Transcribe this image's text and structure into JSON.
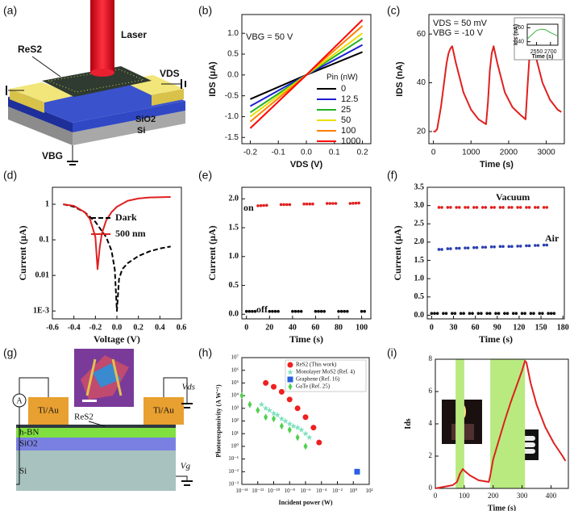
{
  "panel_labels": [
    "(a)",
    "(b)",
    "(c)",
    "(d)",
    "(e)",
    "(f)",
    "(g)",
    "(h)",
    "(i)"
  ],
  "diagram_a": {
    "laser": "Laser",
    "material": "ReS2",
    "drain": "VDS",
    "oxide": "SiO2",
    "substrate": "Si",
    "gate": "VBG"
  },
  "diagram_g": {
    "meter": "A",
    "pad_left": "Ti/Au",
    "pad_right": "Ti/Au",
    "material": "ReS2",
    "hbn": "h-BN",
    "oxide": "SiO2",
    "substrate": "Si",
    "drain": "Vds",
    "gate": "Vg"
  },
  "chart_data": [
    {
      "type": "line",
      "xlabel": "VDS (V)",
      "ylabel": "IDS (μA)",
      "annotations": [
        "VBG = 50 V"
      ],
      "legend_title": "Pin (nW)",
      "xlim": [
        -0.23,
        0.23
      ],
      "ylim": [
        -1.65,
        1.45
      ],
      "xticks": [
        -0.2,
        -0.1,
        {
          "value": 0,
          "label": "0.0"
        },
        0.1,
        0.2
      ],
      "yticks": [
        -1.5,
        {
          "value": -1,
          "label": "-1.0"
        },
        -0.5,
        {
          "value": 0,
          "label": "0.0"
        },
        0.5,
        {
          "value": 1,
          "label": "1.0"
        }
      ],
      "series": [
        {
          "name": "0",
          "color": "#000000",
          "x": [
            -0.2,
            0,
            0.2
          ],
          "values": [
            -0.58,
            0,
            0.55
          ]
        },
        {
          "name": "12.5",
          "color": "#1f1fd0",
          "x": [
            -0.2,
            0,
            0.2
          ],
          "values": [
            -0.75,
            0,
            0.72
          ]
        },
        {
          "name": "25",
          "color": "#22b022",
          "x": [
            -0.2,
            0,
            0.2
          ],
          "values": [
            -0.9,
            0,
            0.88
          ]
        },
        {
          "name": "50",
          "color": "#e8e000",
          "x": [
            -0.2,
            0,
            0.2
          ],
          "values": [
            -1.0,
            0,
            1.0
          ]
        },
        {
          "name": "100",
          "color": "#ff8000",
          "x": [
            -0.2,
            0,
            0.2
          ],
          "values": [
            -1.12,
            0,
            1.18
          ]
        },
        {
          "name": "1000",
          "color": "#ff0000",
          "x": [
            -0.2,
            0,
            0.2
          ],
          "values": [
            -1.28,
            0,
            1.32
          ]
        }
      ]
    },
    {
      "type": "line",
      "xlabel": "Time (s)",
      "ylabel": "IDS (nA)",
      "annotations": [
        "VDS = 50 mV",
        "VBG = -10 V"
      ],
      "xlim": [
        -120,
        3480
      ],
      "ylim": [
        15,
        68
      ],
      "xticks": [
        0,
        1000,
        2000,
        3000
      ],
      "yticks": [
        20,
        40,
        60
      ],
      "series": [
        {
          "color": "#e02020",
          "x": [
            0,
            50,
            100,
            200,
            300,
            350,
            400,
            450,
            500,
            600,
            800,
            1000,
            1200,
            1400,
            1450,
            1500,
            1550,
            1600,
            1700,
            1900,
            2100,
            2300,
            2450,
            2500,
            2550,
            2600,
            2650,
            2700,
            2900,
            3100,
            3300,
            3400
          ],
          "values": [
            20,
            20,
            21,
            30,
            42,
            48,
            52,
            54,
            55,
            48,
            36,
            29,
            25,
            23,
            32,
            45,
            52,
            55,
            48,
            36,
            30,
            27,
            25,
            38,
            50,
            57,
            58,
            52,
            40,
            33,
            29,
            28
          ]
        }
      ]
    },
    {
      "type": "line",
      "xlabel": "Time (s)",
      "ylabel": "Ids (nA)",
      "xlim": [
        2450,
        2780
      ],
      "ylim": [
        35,
        65
      ],
      "xticks": [
        2550,
        2700
      ],
      "yticks": [
        40,
        60
      ],
      "series": [
        {
          "color": "#3cb043",
          "x": [
            2450,
            2500,
            2550,
            2600,
            2650,
            2700,
            2780
          ],
          "values": [
            44,
            50,
            56,
            58,
            57,
            53,
            48
          ]
        }
      ]
    },
    {
      "type": "line",
      "xlabel": "Voltage (V)",
      "ylabel": "Current (μA)",
      "yscale": "log",
      "xlim": [
        -0.6,
        0.6
      ],
      "ylim": [
        0.0006,
        3
      ],
      "xticks": [
        -0.6,
        -0.4,
        -0.2,
        {
          "value": 0,
          "label": "0.0"
        },
        0.2,
        0.4,
        0.6
      ],
      "yticks": [
        {
          "value": 0.001,
          "label": "1E-3"
        },
        0.01,
        0.1,
        1
      ],
      "series": [
        {
          "name": "Dark",
          "color": "#000000",
          "style": "dashed",
          "x": [
            -0.5,
            -0.4,
            -0.3,
            -0.2,
            -0.1,
            -0.05,
            -0.02,
            0,
            0.02,
            0.05,
            0.1,
            0.2,
            0.3,
            0.4,
            0.5
          ],
          "values": [
            1.0,
            0.85,
            0.6,
            0.32,
            0.12,
            0.05,
            0.015,
            0.001,
            0.008,
            0.015,
            0.022,
            0.035,
            0.047,
            0.057,
            0.065
          ]
        },
        {
          "name": "500 nm",
          "color": "#e02020",
          "x": [
            -0.5,
            -0.4,
            -0.3,
            -0.25,
            -0.2,
            -0.18,
            -0.16,
            -0.14,
            -0.1,
            -0.05,
            0,
            0.1,
            0.2,
            0.3,
            0.5
          ],
          "values": [
            1.0,
            0.9,
            0.6,
            0.38,
            0.12,
            0.015,
            0.06,
            0.15,
            0.35,
            0.6,
            0.85,
            1.25,
            1.45,
            1.55,
            1.6
          ]
        }
      ]
    },
    {
      "type": "line",
      "xlabel": "Time (s)",
      "ylabel": "Current (μA)",
      "annotations": [
        "on",
        "off"
      ],
      "xlim": [
        -4,
        108
      ],
      "ylim": [
        -0.08,
        2.2
      ],
      "xticks": [
        0,
        20,
        40,
        60,
        80,
        100
      ],
      "yticks": [
        {
          "value": 0,
          "label": "0.0"
        },
        0.5,
        {
          "value": 1,
          "label": "1.0"
        },
        1.5,
        {
          "value": 2,
          "label": "2.0"
        }
      ],
      "series": [
        {
          "color": "#e02020",
          "style": "dots",
          "x": [
            10,
            20,
            null,
            30,
            40,
            null,
            50,
            60,
            null,
            70,
            80,
            null,
            90,
            100
          ],
          "values": [
            1.88,
            1.89,
            null,
            1.9,
            1.9,
            null,
            1.91,
            1.91,
            null,
            1.92,
            1.92,
            null,
            1.92,
            1.93
          ]
        },
        {
          "color": "#111111",
          "style": "dots",
          "x": [
            0,
            10,
            null,
            20,
            30,
            null,
            40,
            50,
            null,
            60,
            70,
            null,
            80,
            90,
            null,
            100,
            105
          ],
          "values": [
            0.05,
            0.05,
            null,
            0.05,
            0.05,
            null,
            0.05,
            0.05,
            null,
            0.05,
            0.05,
            null,
            0.05,
            0.05,
            null,
            0.05,
            0.05
          ]
        }
      ]
    },
    {
      "type": "line",
      "xlabel": "Time (s)",
      "ylabel": "Current (μA)",
      "xlim": [
        -6,
        182
      ],
      "ylim": [
        -0.1,
        3.5
      ],
      "xticks": [
        0,
        30,
        60,
        90,
        120,
        150,
        180
      ],
      "yticks": [
        {
          "value": 0,
          "label": "0.0"
        },
        0.5,
        {
          "value": 1,
          "label": "1.0"
        },
        1.5,
        {
          "value": 2,
          "label": "2.0"
        },
        2.5,
        {
          "value": 3,
          "label": "3.0"
        },
        3.5
      ],
      "series": [
        {
          "name": "Vacuum",
          "color": "#e02020",
          "style": "dots",
          "x": [
            10,
            16,
            null,
            22,
            28,
            null,
            34,
            40,
            null,
            46,
            52,
            null,
            58,
            64,
            null,
            70,
            76,
            null,
            82,
            88,
            null,
            94,
            100,
            null,
            106,
            112,
            null,
            118,
            124,
            null,
            130,
            136,
            null,
            142,
            148,
            null,
            154,
            160
          ],
          "values": [
            2.95,
            2.95,
            null,
            2.95,
            2.95,
            null,
            2.95,
            2.95,
            null,
            2.95,
            2.95,
            null,
            2.95,
            2.95,
            null,
            2.95,
            2.95,
            null,
            2.95,
            2.95,
            null,
            2.95,
            2.95,
            null,
            2.95,
            2.95,
            null,
            2.95,
            2.95,
            null,
            2.95,
            2.95,
            null,
            2.95,
            2.95,
            null,
            2.95,
            2.95
          ]
        },
        {
          "name": "Air",
          "color": "#2a3fb0",
          "style": "dots",
          "x": [
            10,
            16,
            null,
            22,
            28,
            null,
            34,
            40,
            null,
            46,
            52,
            null,
            58,
            64,
            null,
            70,
            76,
            null,
            82,
            88,
            null,
            94,
            100,
            null,
            106,
            112,
            null,
            118,
            124,
            null,
            130,
            136,
            null,
            142,
            148,
            null,
            154,
            160
          ],
          "values": [
            1.8,
            1.8,
            null,
            1.82,
            1.82,
            null,
            1.83,
            1.83,
            null,
            1.84,
            1.84,
            null,
            1.85,
            1.85,
            null,
            1.86,
            1.86,
            null,
            1.87,
            1.87,
            null,
            1.88,
            1.88,
            null,
            1.88,
            1.88,
            null,
            1.89,
            1.89,
            null,
            1.9,
            1.9,
            null,
            1.91,
            1.91,
            null,
            1.92,
            1.92
          ]
        },
        {
          "color": "#111111",
          "style": "dots",
          "x": [
            0,
            10,
            null,
            16,
            22,
            null,
            28,
            34,
            null,
            40,
            46,
            null,
            52,
            58,
            null,
            64,
            70,
            null,
            76,
            82,
            null,
            88,
            94,
            null,
            100,
            106,
            null,
            112,
            118,
            null,
            124,
            130,
            null,
            136,
            142,
            null,
            148,
            154,
            null,
            160,
            170
          ],
          "values": [
            0.05,
            0.05,
            null,
            0.05,
            0.05,
            null,
            0.05,
            0.05,
            null,
            0.05,
            0.05,
            null,
            0.05,
            0.05,
            null,
            0.05,
            0.05,
            null,
            0.05,
            0.05,
            null,
            0.05,
            0.05,
            null,
            0.05,
            0.05,
            null,
            0.05,
            0.05,
            null,
            0.05,
            0.05,
            null,
            0.05,
            0.05,
            null,
            0.05,
            0.05,
            null,
            0.05,
            0.05
          ]
        }
      ]
    },
    {
      "type": "scatter",
      "xlabel": "Incident power (W)",
      "ylabel": "Photoresponsivity (A W⁻¹)",
      "xscale": "log",
      "yscale": "log",
      "xlim": [
        1e-14,
        100
      ],
      "ylim": [
        0.001,
        10000000
      ],
      "xticks": [
        {
          "value": 1e-14,
          "label": "10⁻¹⁴"
        },
        {
          "value": 1e-12,
          "label": "10⁻¹²"
        },
        {
          "value": 1e-10,
          "label": "10⁻¹⁰"
        },
        {
          "value": 1e-08,
          "label": "10⁻⁸"
        },
        {
          "value": 1e-06,
          "label": "10⁻⁶"
        },
        {
          "value": 0.0001,
          "label": "10⁻⁴"
        },
        {
          "value": 0.01,
          "label": "10⁻²"
        },
        {
          "value": 1,
          "label": "10⁰"
        },
        {
          "value": 100,
          "label": "10²"
        }
      ],
      "yticks": [
        {
          "value": 0.001,
          "label": "10⁻³"
        },
        {
          "value": 0.01,
          "label": "10⁻²"
        },
        {
          "value": 0.1,
          "label": "10⁻¹"
        },
        {
          "value": 1,
          "label": "10⁰"
        },
        {
          "value": 10,
          "label": "10¹"
        },
        {
          "value": 100,
          "label": "10²"
        },
        {
          "value": 1000,
          "label": "10³"
        },
        {
          "value": 10000,
          "label": "10⁴"
        },
        {
          "value": 100000,
          "label": "10⁵"
        },
        {
          "value": 1000000,
          "label": "10⁶"
        },
        {
          "value": 10000000,
          "label": "10⁷"
        }
      ],
      "series": [
        {
          "name": "ReS2 (This work)",
          "color": "#ee2020",
          "marker": "circle",
          "x": [
            1e-11,
            1e-10,
            1e-09,
            1e-08,
            1e-07,
            1e-06,
            1e-05,
            5e-05
          ],
          "values": [
            100000,
            50000,
            20000,
            5000,
            1000,
            200,
            30,
            2
          ]
        },
        {
          "name": "Monolayer MoS2 (Ref. 4)",
          "color": "#7fe0c0",
          "marker": "star",
          "x": [
            3e-12,
            1e-11,
            3e-11,
            1e-10,
            3e-10,
            1e-09,
            3e-09,
            1e-08,
            3e-08,
            1e-07,
            3e-07,
            1e-06,
            3e-06
          ],
          "values": [
            2000,
            1000,
            700,
            400,
            300,
            150,
            100,
            60,
            40,
            30,
            20,
            10,
            5
          ]
        },
        {
          "name": "Graphene (Ref. 16)",
          "color": "#2a5fe0",
          "marker": "square",
          "x": [
            3
          ],
          "values": [
            0.01
          ]
        },
        {
          "name": "GaTe (Ref. 25)",
          "color": "#50d050",
          "marker": "diamond",
          "x": [
            1e-14,
            1e-13,
            1e-12,
            1e-11,
            1e-10,
            1e-09,
            1e-08,
            1e-07,
            1e-06
          ],
          "values": [
            10000,
            2000,
            700,
            200,
            150,
            40,
            20,
            5,
            1
          ]
        }
      ]
    },
    {
      "type": "line",
      "xlabel": "Time (s)",
      "ylabel": "Ids",
      "highlight_ranges": [
        [
          70,
          100
        ],
        [
          190,
          310
        ]
      ],
      "highlight_color": "#b8ea80",
      "xlim": [
        0,
        460
      ],
      "ylim": [
        0,
        8
      ],
      "xticks": [
        0,
        100,
        200,
        300,
        400
      ],
      "yticks": [
        0,
        2,
        4,
        6,
        8
      ],
      "series": [
        {
          "color": "#e02020",
          "x": [
            0,
            30,
            60,
            75,
            85,
            95,
            100,
            120,
            150,
            185,
            190,
            200,
            220,
            240,
            260,
            280,
            300,
            310,
            315,
            330,
            350,
            380,
            410,
            440,
            450
          ],
          "values": [
            0,
            0.1,
            0.2,
            0.4,
            0.9,
            1.2,
            1.1,
            0.8,
            0.5,
            0.4,
            0.8,
            1.8,
            3.0,
            4.2,
            5.3,
            6.3,
            7.3,
            7.9,
            7.8,
            6.5,
            5.2,
            3.8,
            2.8,
            2.0,
            1.7
          ]
        }
      ]
    }
  ]
}
